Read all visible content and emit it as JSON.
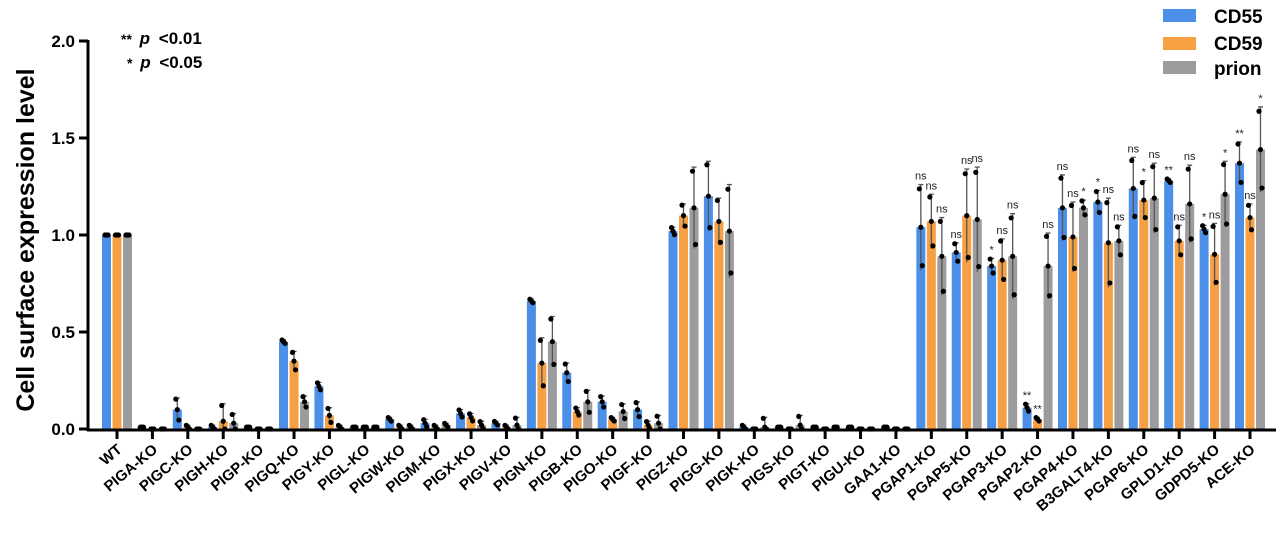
{
  "chart_data": {
    "type": "bar",
    "title": "",
    "xlabel": "",
    "ylabel": "Cell surface expression level",
    "ylim": [
      0,
      2.0
    ],
    "yticks": [
      "0.0",
      "0.5",
      "1.0",
      "1.5",
      "2.0"
    ],
    "grid": false,
    "legend_position": "top-right",
    "annotations": [
      "** p <0.01",
      "* p <0.05"
    ],
    "categories": [
      "WT",
      "PIGA-KO",
      "PIGC-KO",
      "PIGH-KO",
      "PIGP-KO",
      "PIGQ-KO",
      "PIGY-KO",
      "PIGL-KO",
      "PIGW-KO",
      "PIGM-KO",
      "PIGX-KO",
      "PIGV-KO",
      "PIGN-KO",
      "PIGB-KO",
      "PIGO-KO",
      "PIGF-KO",
      "PIGZ-KO",
      "PIGG-KO",
      "PIGK-KO",
      "PIGS-KO",
      "PIGT-KO",
      "PIGU-KO",
      "GAA1-KO",
      "PGAP1-KO",
      "PGAP5-KO",
      "PGAP3-KO",
      "PGAP2-KO",
      "PGAP4-KO",
      "B3GALT4-KO",
      "PGAP6-KO",
      "GPLD1-KO",
      "GDPD5-KO",
      "ACE-KO"
    ],
    "series": [
      {
        "name": "CD55",
        "color": "#4b8fe8",
        "values": [
          1.0,
          0.01,
          0.1,
          0.01,
          0.01,
          0.45,
          0.22,
          0.01,
          0.05,
          0.03,
          0.08,
          0.03,
          0.66,
          0.29,
          0.14,
          0.1,
          1.02,
          1.2,
          0.01,
          0.01,
          0.01,
          0.01,
          0.01,
          1.04,
          0.91,
          0.84,
          0.11,
          1.14,
          1.17,
          1.24,
          1.28,
          1.03,
          1.37
        ],
        "errors": [
          0.0,
          0.0,
          0.06,
          0.01,
          0.0,
          0.01,
          0.02,
          0.0,
          0.01,
          0.02,
          0.02,
          0.01,
          0.01,
          0.05,
          0.03,
          0.04,
          0.02,
          0.18,
          0.01,
          0.0,
          0.0,
          0.0,
          0.0,
          0.22,
          0.05,
          0.04,
          0.02,
          0.17,
          0.06,
          0.16,
          0.01,
          0.02,
          0.11
        ],
        "significance": [
          "",
          "",
          "",
          "",
          "",
          "",
          "",
          "",
          "",
          "",
          "",
          "",
          "",
          "",
          "",
          "",
          "",
          "",
          "",
          "",
          "",
          "",
          "",
          "ns",
          "ns",
          "*",
          "**",
          "ns",
          "*",
          "ns",
          "**",
          "*",
          "**"
        ]
      },
      {
        "name": "CD59",
        "color": "#f6a043",
        "values": [
          1.0,
          0.0,
          0.01,
          0.04,
          0.0,
          0.35,
          0.07,
          0.01,
          0.01,
          0.01,
          0.06,
          0.01,
          0.34,
          0.09,
          0.05,
          0.02,
          1.1,
          1.07,
          0.0,
          0.0,
          0.0,
          0.0,
          0.0,
          1.07,
          1.1,
          0.87,
          0.05,
          0.99,
          0.96,
          1.18,
          0.97,
          0.9,
          1.09
        ],
        "errors": [
          0.0,
          0.0,
          0.01,
          0.09,
          0.0,
          0.05,
          0.04,
          0.0,
          0.01,
          0.01,
          0.02,
          0.01,
          0.13,
          0.02,
          0.01,
          0.02,
          0.06,
          0.12,
          0.0,
          0.0,
          0.0,
          0.0,
          0.0,
          0.14,
          0.24,
          0.11,
          0.01,
          0.18,
          0.23,
          0.1,
          0.08,
          0.16,
          0.07
        ],
        "significance": [
          "",
          "",
          "",
          "",
          "",
          "",
          "",
          "",
          "",
          "",
          "",
          "",
          "",
          "",
          "",
          "",
          "",
          "",
          "",
          "",
          "",
          "",
          "",
          "ns",
          "ns",
          "ns",
          "**",
          "ns",
          "ns",
          "*",
          "ns",
          "ns",
          "ns"
        ]
      },
      {
        "name": "prion",
        "color": "#9c9c9e",
        "values": [
          1.0,
          0.0,
          0.0,
          0.03,
          0.0,
          0.14,
          0.01,
          0.01,
          0.01,
          0.02,
          0.02,
          0.02,
          0.45,
          0.14,
          0.09,
          0.03,
          1.14,
          1.02,
          0.01,
          0.02,
          0.01,
          0.0,
          0.0,
          0.89,
          1.08,
          0.89,
          0.84,
          1.14,
          0.97,
          1.19,
          1.16,
          1.21,
          1.44
        ],
        "errors": [
          0.0,
          0.0,
          0.0,
          0.05,
          0.0,
          0.03,
          0.01,
          0.0,
          0.01,
          0.01,
          0.02,
          0.04,
          0.13,
          0.06,
          0.04,
          0.04,
          0.21,
          0.24,
          0.05,
          0.05,
          0.0,
          0.0,
          0.0,
          0.2,
          0.27,
          0.22,
          0.17,
          0.04,
          0.08,
          0.18,
          0.2,
          0.17,
          0.22
        ],
        "significance": [
          "",
          "",
          "",
          "",
          "",
          "",
          "",
          "",
          "",
          "",
          "",
          "",
          "",
          "",
          "",
          "",
          "",
          "",
          "",
          "",
          "",
          "",
          "",
          "ns",
          "ns",
          "ns",
          "ns",
          "*",
          "ns",
          "ns",
          "ns",
          "*",
          "*"
        ]
      }
    ]
  },
  "legend": {
    "items": [
      {
        "label": "CD55",
        "color": "#4b8fe8"
      },
      {
        "label": "CD59",
        "color": "#f6a043"
      },
      {
        "label": "prion",
        "color": "#9c9c9e"
      }
    ]
  },
  "significance_key": {
    "double": {
      "stars": "**",
      "p": "p",
      "text": "<0.01"
    },
    "single": {
      "stars": "*",
      "p": "p",
      "text": "<0.05"
    }
  }
}
